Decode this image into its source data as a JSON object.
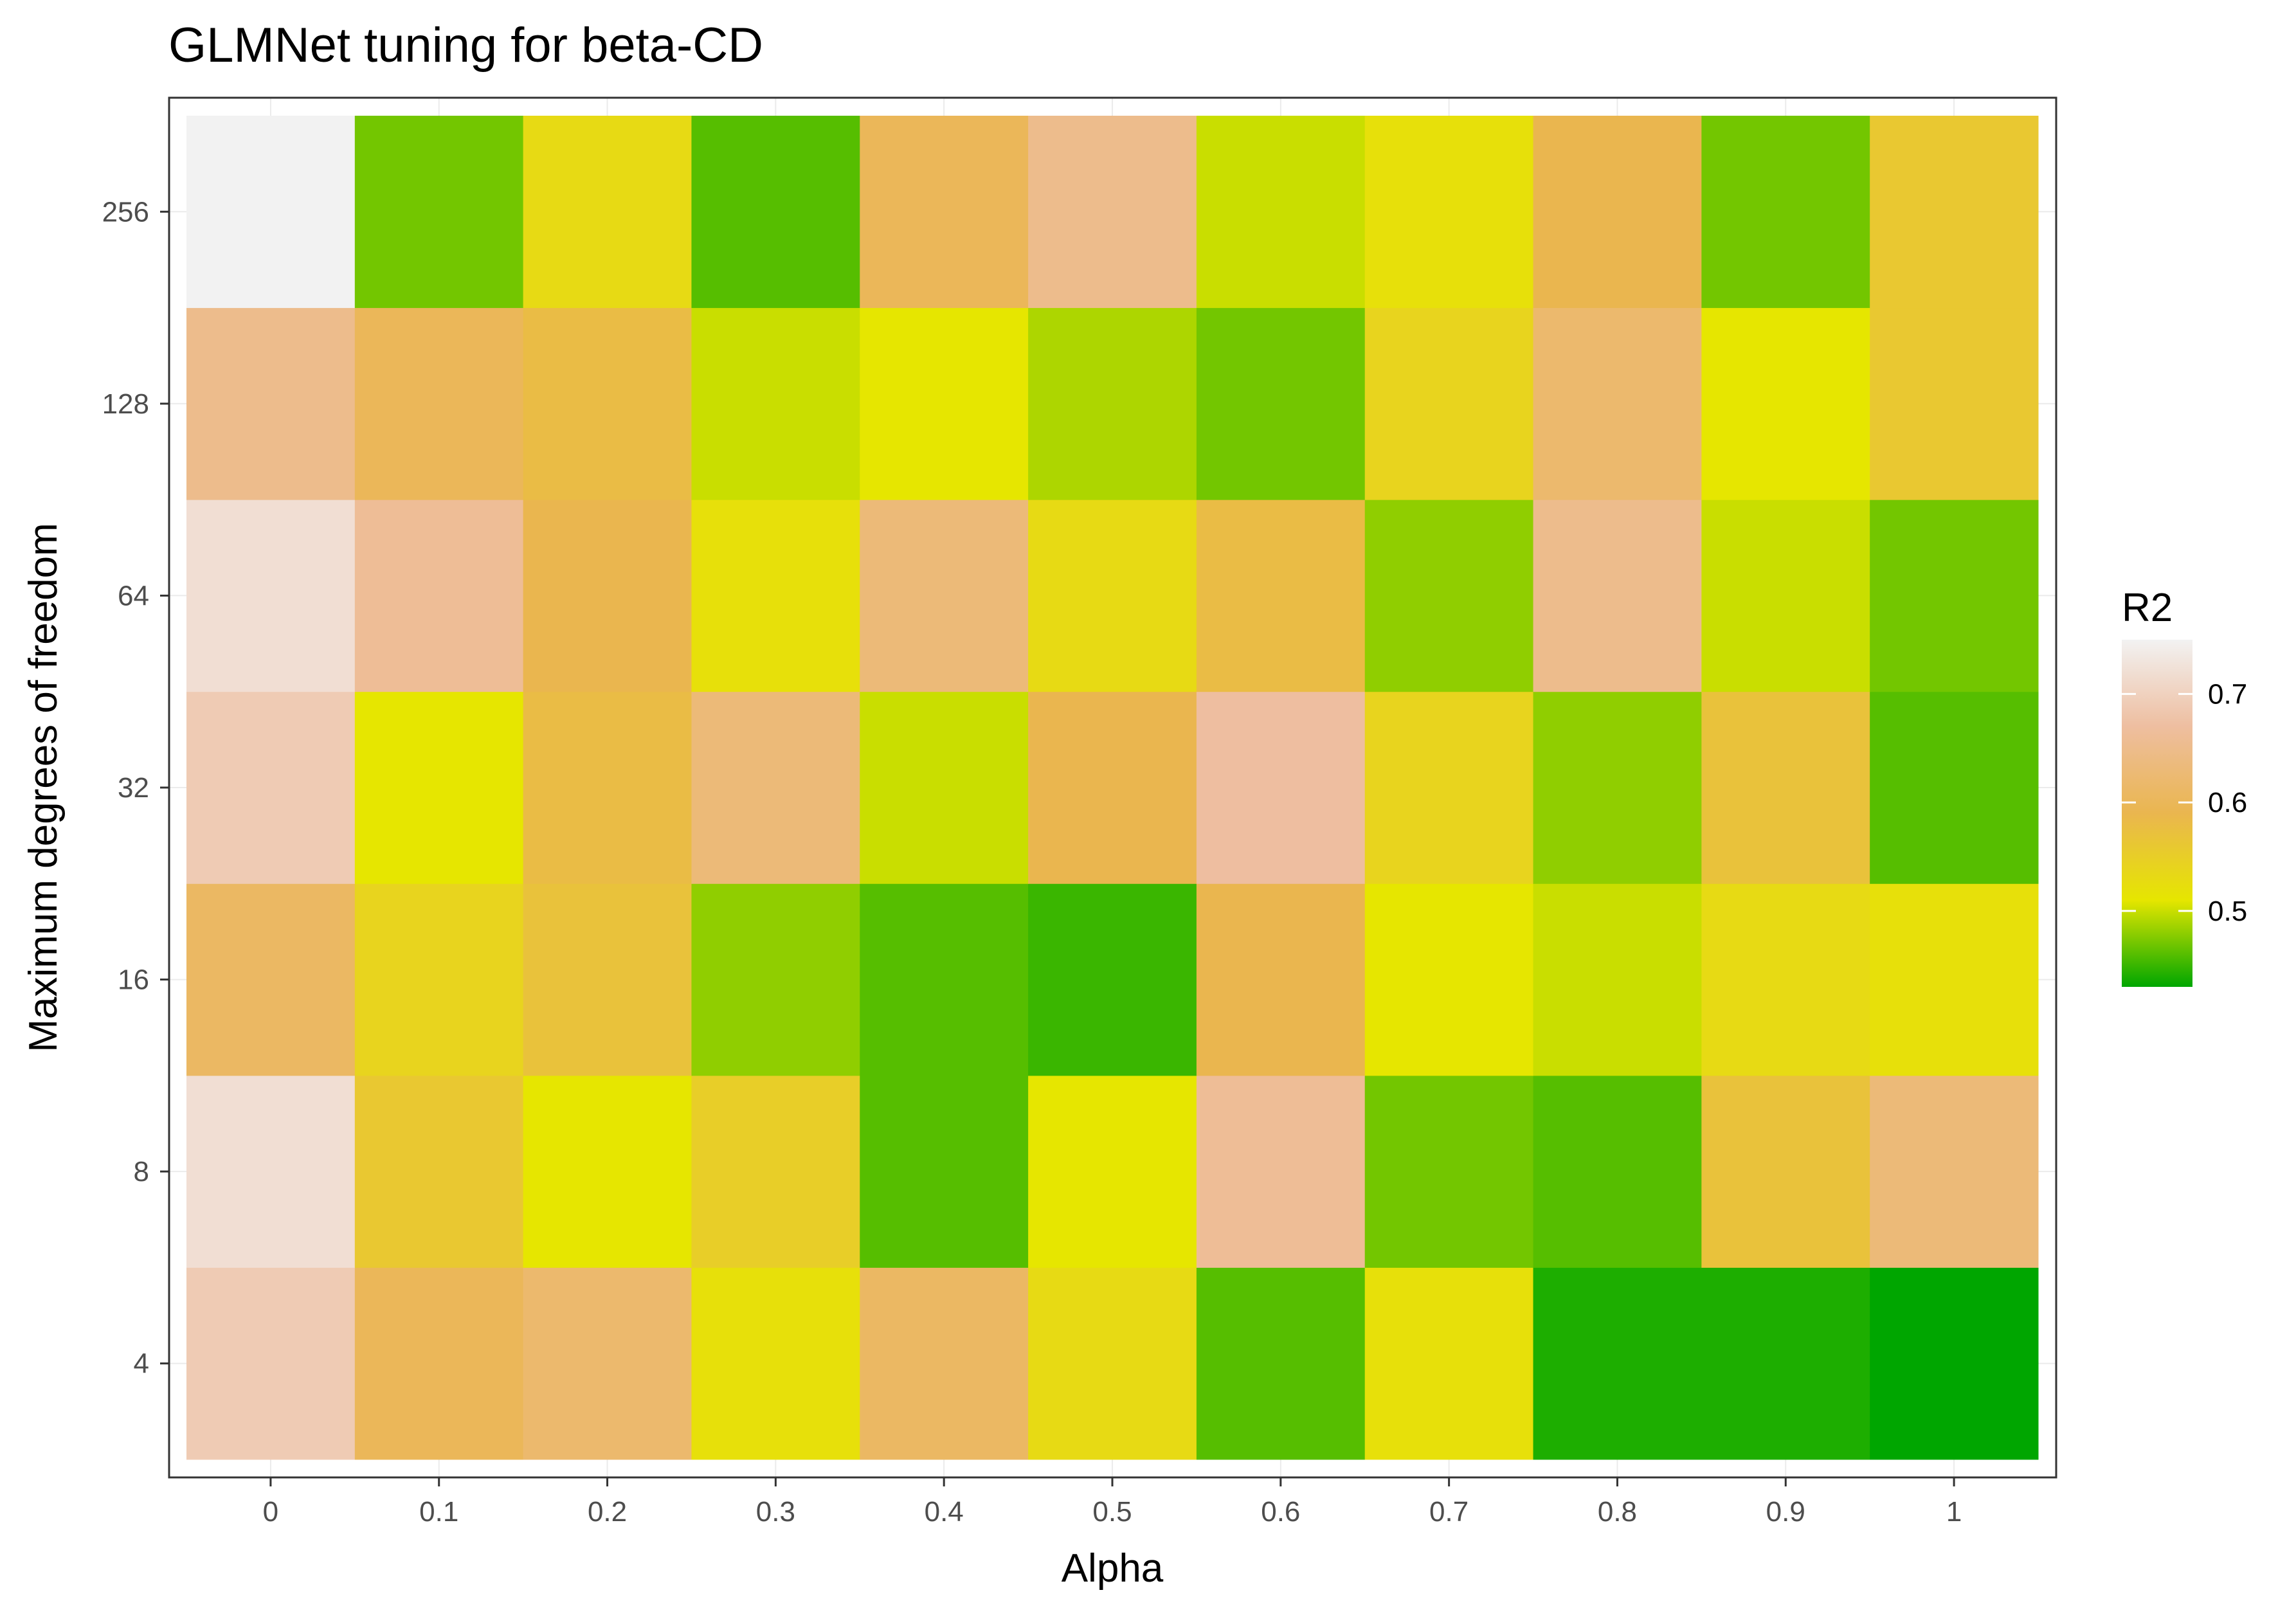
{
  "chart_data": {
    "type": "heatmap",
    "title": "GLMNet tuning for beta-CD",
    "xlabel": "Alpha",
    "ylabel": "Maximum degrees of freedom",
    "x": [
      "0",
      "0.1",
      "0.2",
      "0.3",
      "0.4",
      "0.5",
      "0.6",
      "0.7",
      "0.8",
      "0.9",
      "1"
    ],
    "y": [
      "4",
      "8",
      "16",
      "32",
      "64",
      "128",
      "256"
    ],
    "values": [
      [
        0.69,
        0.6,
        0.62,
        0.52,
        0.61,
        0.53,
        0.46,
        0.52,
        0.44,
        0.44,
        0.43
      ],
      [
        0.72,
        0.56,
        0.51,
        0.55,
        0.46,
        0.51,
        0.66,
        0.47,
        0.46,
        0.57,
        0.63
      ],
      [
        0.61,
        0.54,
        0.57,
        0.48,
        0.46,
        0.45,
        0.59,
        0.51,
        0.5,
        0.53,
        0.52
      ],
      [
        0.69,
        0.51,
        0.58,
        0.63,
        0.5,
        0.59,
        0.67,
        0.54,
        0.48,
        0.57,
        0.46
      ],
      [
        0.72,
        0.66,
        0.59,
        0.52,
        0.63,
        0.53,
        0.58,
        0.48,
        0.65,
        0.5,
        0.47
      ],
      [
        0.65,
        0.6,
        0.58,
        0.5,
        0.51,
        0.49,
        0.47,
        0.54,
        0.62,
        0.51,
        0.56
      ],
      [
        null,
        0.47,
        0.53,
        0.46,
        0.6,
        0.65,
        0.5,
        0.52,
        0.59,
        0.47,
        0.56
      ]
    ],
    "na_color": "#f2f2f2",
    "legend": {
      "title": "R2",
      "position": "right",
      "min": 0.43,
      "max": 0.75,
      "ticks": [
        "0.5",
        "0.6",
        "0.7"
      ],
      "colors": [
        "#00a600",
        "#e6e600",
        "#eab64f",
        "#eebea0",
        "#f2f2f2"
      ]
    },
    "grid": true
  }
}
